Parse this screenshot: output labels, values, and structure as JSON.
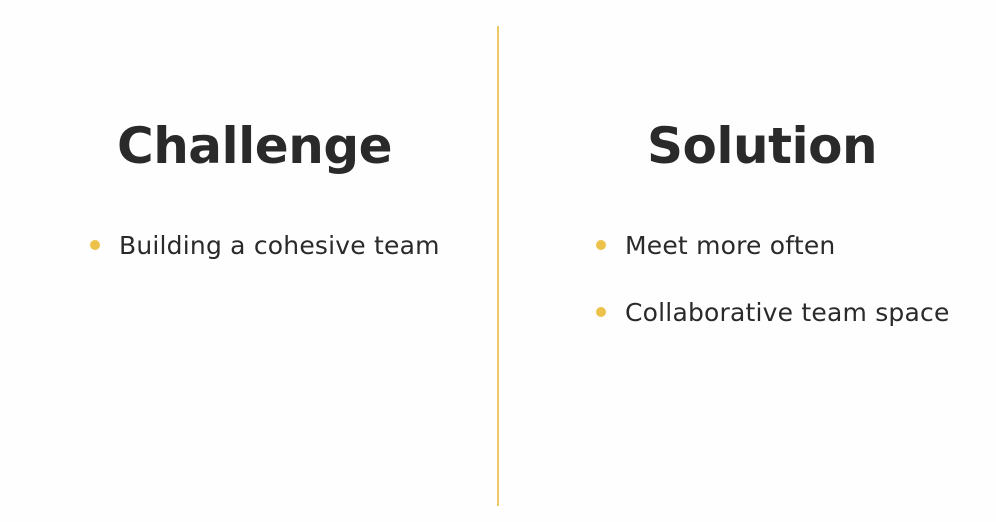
{
  "slide": {
    "accent_color": "#ecc24a",
    "divider_color": "#ecc962",
    "left": {
      "heading": "Challenge",
      "bullets": [
        {
          "text": "Building a cohesive team"
        }
      ]
    },
    "right": {
      "heading": "Solution",
      "bullets": [
        {
          "text": "Meet more often"
        },
        {
          "text": "Collaborative team space"
        }
      ]
    }
  }
}
